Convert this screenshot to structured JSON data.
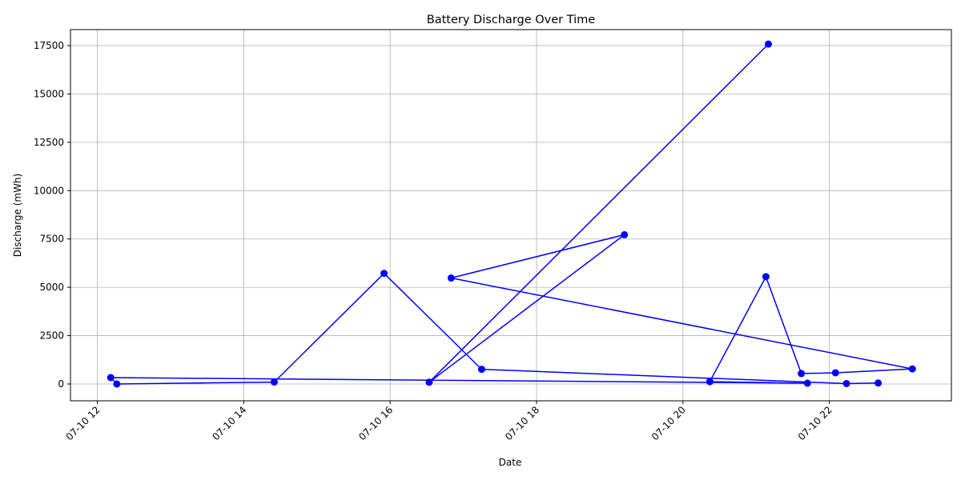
{
  "chart_data": {
    "type": "line",
    "title": "Battery Discharge Over Time",
    "xlabel": "Date",
    "ylabel": "Discharge (mWh)",
    "x_ticks": [
      {
        "value": "2024-07-10T12:00",
        "label": "07-10 12"
      },
      {
        "value": "2024-07-10T14:00",
        "label": "07-10 14"
      },
      {
        "value": "2024-07-10T16:00",
        "label": "07-10 16"
      },
      {
        "value": "2024-07-10T18:00",
        "label": "07-10 18"
      },
      {
        "value": "2024-07-10T20:00",
        "label": "07-10 20"
      },
      {
        "value": "2024-07-10T22:00",
        "label": "07-10 22"
      }
    ],
    "y_ticks": [
      0,
      2500,
      5000,
      7500,
      10000,
      12500,
      15000,
      17500
    ],
    "xlim": [
      "2024-07-10T11:38",
      "2024-07-10T23:40"
    ],
    "ylim": [
      -870,
      18330
    ],
    "grid": true,
    "color": "#0000ff",
    "series": [
      {
        "points": [
          {
            "x": "2024-07-10T21:10",
            "y": 17580
          },
          {
            "x": "2024-07-10T16:32",
            "y": 90
          },
          {
            "x": "2024-07-10T19:12",
            "y": 7720
          },
          {
            "x": "2024-07-10T16:50",
            "y": 5480
          },
          {
            "x": "2024-07-10T23:08",
            "y": 780
          },
          {
            "x": "2024-07-10T22:05",
            "y": 580
          },
          {
            "x": "2024-07-10T21:37",
            "y": 540
          },
          {
            "x": "2024-07-10T21:08",
            "y": 5550
          },
          {
            "x": "2024-07-10T20:22",
            "y": 120
          },
          {
            "x": "2024-07-10T21:42",
            "y": 40
          },
          {
            "x": "2024-07-10T12:11",
            "y": 330
          },
          {
            "x": "2024-07-10T12:16",
            "y": 0
          },
          {
            "x": "2024-07-10T14:25",
            "y": 100
          },
          {
            "x": "2024-07-10T15:55",
            "y": 5720
          },
          {
            "x": "2024-07-10T17:15",
            "y": 760
          },
          {
            "x": "2024-07-10T22:14",
            "y": 20
          },
          {
            "x": "2024-07-10T22:40",
            "y": 50
          }
        ]
      }
    ]
  }
}
